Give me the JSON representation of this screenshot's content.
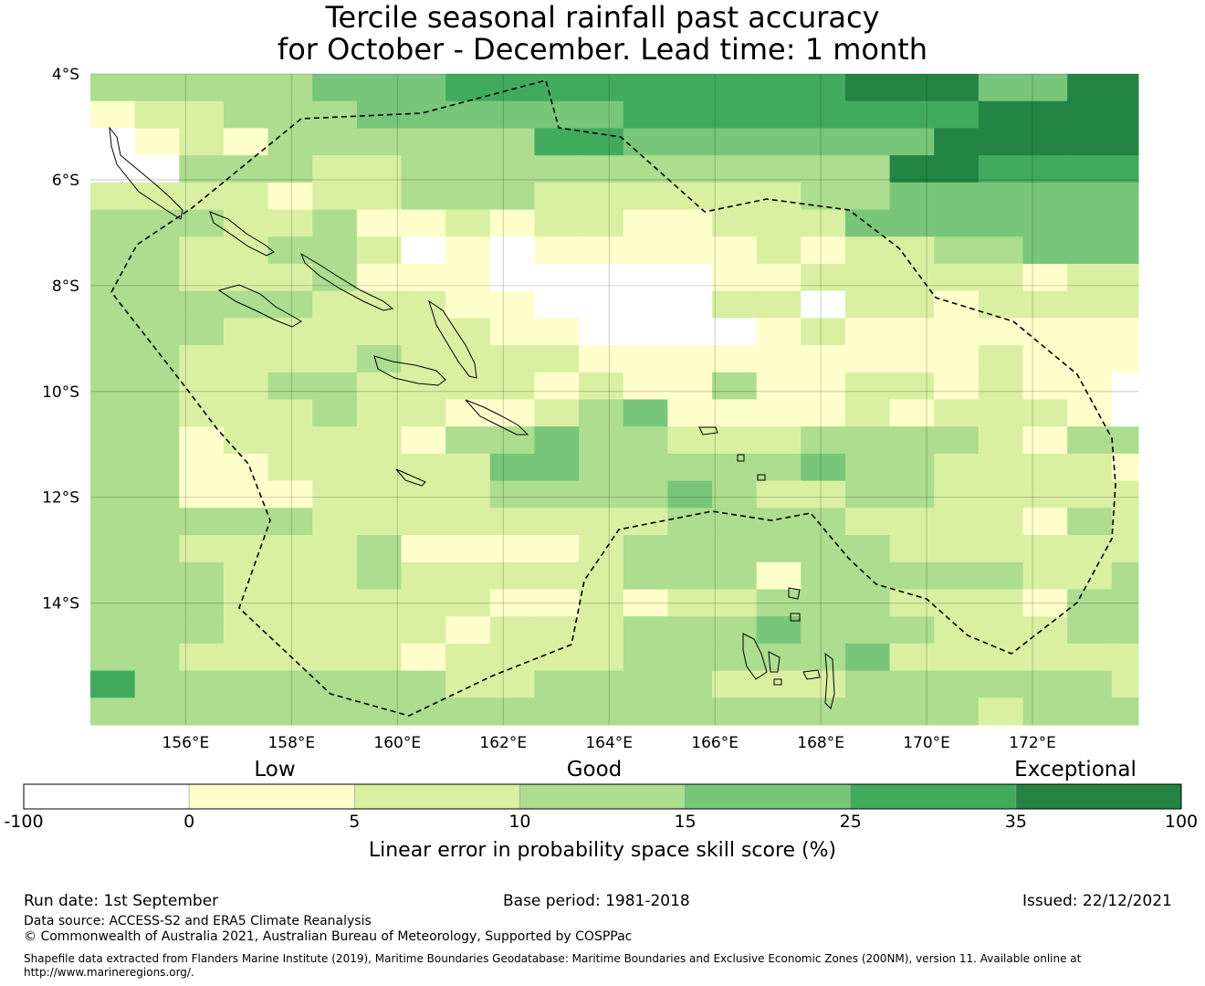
{
  "title": {
    "line1": "Tercile seasonal rainfall past accuracy",
    "line2": "for October - December. Lead time: 1 month"
  },
  "map": {
    "lon_range": [
      154.2,
      174.0
    ],
    "lat_range": [
      -16.3,
      -4.0
    ],
    "lat_ticks": [
      {
        "value": -4,
        "label": "4°S"
      },
      {
        "value": -6,
        "label": "6°S"
      },
      {
        "value": -8,
        "label": "8°S"
      },
      {
        "value": -10,
        "label": "10°S"
      },
      {
        "value": -12,
        "label": "12°S"
      },
      {
        "value": -14,
        "label": "14°S"
      }
    ],
    "lon_ticks": [
      {
        "value": 156,
        "label": "156°E"
      },
      {
        "value": 158,
        "label": "158°E"
      },
      {
        "value": 160,
        "label": "160°E"
      },
      {
        "value": 162,
        "label": "162°E"
      },
      {
        "value": 164,
        "label": "164°E"
      },
      {
        "value": 166,
        "label": "166°E"
      },
      {
        "value": 168,
        "label": "168°E"
      },
      {
        "value": 170,
        "label": "170°E"
      },
      {
        "value": 172,
        "label": "172°E"
      }
    ],
    "grid": {
      "cell_lon_start": 154.2,
      "cell_width_deg": 0.8437,
      "cell_lat_start": -4.0,
      "cell_height_deg": 0.5591,
      "rows": [
        "3333344455555555566644666",
        "1223334444445555555566666",
        "0121333333554444444666666",
        "0033322333333333336655555",
        "2222122333222222334444445",
        "3332231121221122244444444",
        "33223320101111121223344443",
        "33222311100000112222212244",
        "333332221100002202212222333",
        "3332222221100001211111113",
        "3322223222211111111121112",
        "33223322221211311221211011",
        "3322232211234111121222101",
        "33122221334332223333213300",
        "3311222224433333433222211",
        "33111222233334322332222233",
        "3333322222222333322221323",
        "3322223111123333332222222",
        "3332223222223331333332233",
        "3332222221121223332221334",
        "3332222212223334333222333",
        "3322222122223333342222222",
        "5333333322333322233333322",
        "3333333333333333333323333"
      ]
    },
    "colors": {
      "c0": "#ffffff",
      "c1": "#ffffcc",
      "c2": "#d9f0a3",
      "c3": "#addd8e",
      "c4": "#78c679",
      "c5": "#41ab5d",
      "c6": "#238443"
    }
  },
  "colorbar": {
    "categories": {
      "low": "Low",
      "good": "Good",
      "exceptional": "Exceptional"
    },
    "tick_labels": [
      "-100",
      "0",
      "5",
      "10",
      "15",
      "25",
      "35",
      "100"
    ],
    "label": "Linear error in probability space skill score (%)"
  },
  "footer": {
    "run_date": "Run date: 1st September",
    "base_period": "Base period: 1981-2018",
    "issued": "Issued: 22/12/2021",
    "data_source": "Data source: ACCESS-S2 and ERA5 Climate Reanalysis",
    "copyright": "© Commonwealth of Australia 2021, Australian Bureau of Meteorology, Supported by COSPPac",
    "shapefile": "Shapefile data extracted from Flanders Marine Institute (2019), Maritime Boundaries Geodatabase: Maritime Boundaries and Exclusive Economic Zones (200NM), version 11. Available online at http://www.marineregions.org/."
  }
}
